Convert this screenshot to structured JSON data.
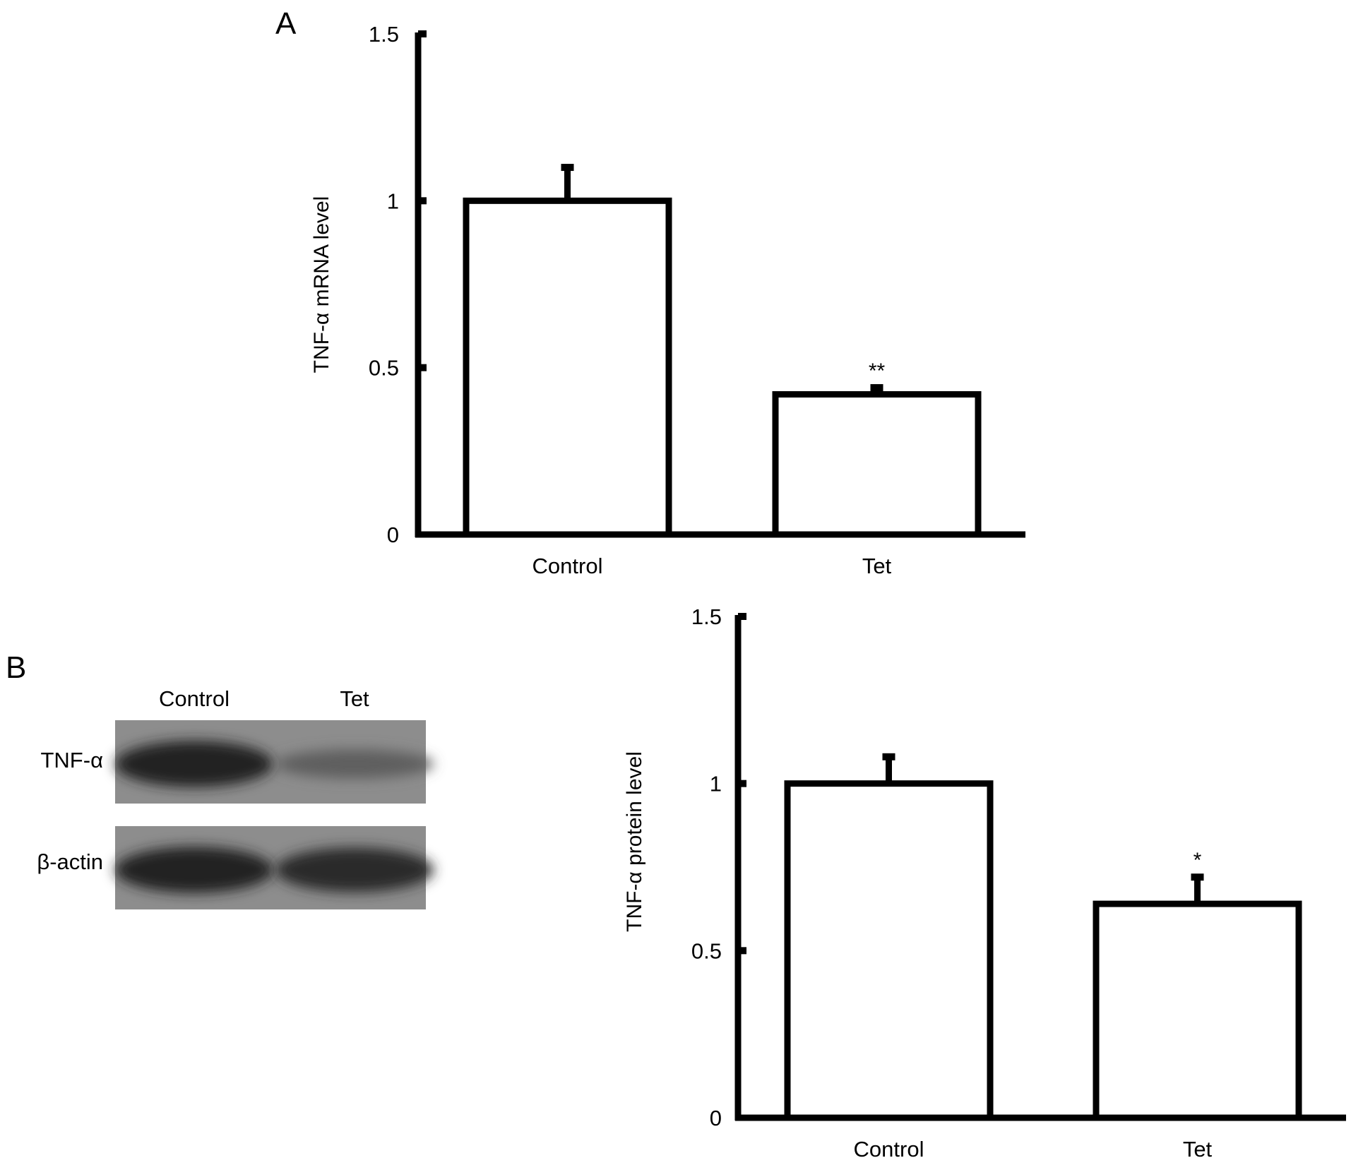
{
  "chart_data": [
    {
      "panel": "A",
      "type": "bar",
      "categories": [
        "Control",
        "Tet"
      ],
      "values": [
        1.0,
        0.42
      ],
      "errors": [
        0.1,
        0.02
      ],
      "significance": [
        "",
        "**"
      ],
      "yticks": [
        "0",
        "0.5",
        "1",
        "1.5"
      ],
      "ylabel": "TNF-α mRNA level",
      "ylim": [
        0,
        1.5
      ]
    },
    {
      "panel": "B",
      "type": "bar",
      "categories": [
        "Control",
        "Tet"
      ],
      "values": [
        1.0,
        0.64
      ],
      "errors": [
        0.08,
        0.08
      ],
      "significance": [
        "",
        "*"
      ],
      "yticks": [
        "0",
        "0.5",
        "1",
        "1.5"
      ],
      "ylabel": "TNF-α protein level",
      "ylim": [
        0,
        1.5
      ]
    }
  ],
  "western_blot": {
    "lanes": [
      "Control",
      "Tet"
    ],
    "rows": [
      {
        "label": "TNF-α",
        "band_intensity": [
          0.85,
          0.3
        ]
      },
      {
        "label": "β-actin",
        "band_intensity": [
          0.85,
          0.8
        ]
      }
    ]
  }
}
